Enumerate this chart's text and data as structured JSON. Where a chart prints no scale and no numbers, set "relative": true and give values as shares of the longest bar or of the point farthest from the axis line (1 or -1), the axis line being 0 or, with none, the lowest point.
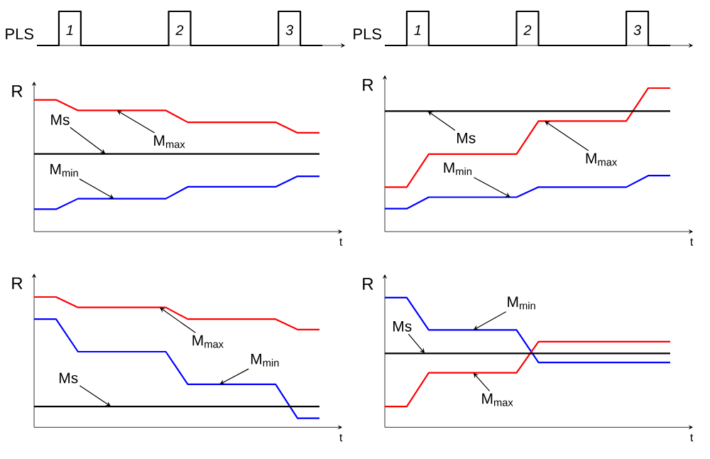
{
  "chart_data": [
    {
      "type": "step",
      "relative": true,
      "ylabel": "PLS",
      "categories": [
        null,
        null,
        null,
        null,
        null,
        null,
        null,
        null,
        null,
        null,
        null,
        null,
        null,
        null
      ],
      "series": [
        {
          "color": "#000000",
          "values": [
            0,
            1,
            0,
            0,
            0,
            0,
            1,
            0,
            0,
            0,
            0,
            1,
            0,
            0
          ]
        }
      ],
      "annotations": [
        "1",
        "2",
        "3"
      ]
    },
    {
      "type": "step",
      "relative": true,
      "ylabel": "PLS",
      "categories": [
        null,
        null,
        null,
        null,
        null,
        null,
        null,
        null,
        null,
        null,
        null,
        null,
        null,
        null
      ],
      "series": [
        {
          "color": "#000000",
          "values": [
            0,
            1,
            0,
            0,
            0,
            0,
            1,
            0,
            0,
            0,
            0,
            1,
            0,
            0
          ]
        }
      ],
      "annotations": [
        "1",
        "2",
        "3"
      ]
    },
    {
      "type": "line",
      "relative": true,
      "ylabel": "R",
      "xlabel": "t",
      "categories": [
        null,
        null,
        null,
        null,
        null,
        null,
        null,
        null,
        null,
        null,
        null,
        null,
        null,
        null
      ],
      "series": [
        {
          "color": "#ff0000",
          "values": [
            1,
            1,
            0.92,
            0.92,
            0.92,
            0.92,
            0.92,
            0.83,
            0.83,
            0.83,
            0.83,
            0.83,
            0.75,
            0.75
          ]
        },
        {
          "color": "#000000",
          "values": [
            0.59,
            0.59,
            0.59,
            0.59,
            0.59,
            0.59,
            0.59,
            0.59,
            0.59,
            0.59,
            0.59,
            0.59,
            0.59,
            0.59
          ]
        },
        {
          "color": "#0000ff",
          "values": [
            0.17,
            0.17,
            0.25,
            0.25,
            0.25,
            0.25,
            0.25,
            0.34,
            0.34,
            0.34,
            0.34,
            0.34,
            0.42,
            0.42
          ]
        }
      ],
      "annotations": [
        "Ms",
        "M$_{max}$",
        "M$_{min}$"
      ]
    },
    {
      "type": "line",
      "relative": true,
      "ylabel": "R",
      "xlabel": "t",
      "categories": [
        null,
        null,
        null,
        null,
        null,
        null,
        null,
        null,
        null,
        null,
        null,
        null,
        null,
        null
      ],
      "series": [
        {
          "color": "#ff0000",
          "values": [
            0.31,
            0.31,
            0.54,
            0.54,
            0.54,
            0.54,
            0.54,
            0.77,
            0.77,
            0.77,
            0.77,
            0.77,
            1,
            1
          ]
        },
        {
          "color": "#000000",
          "values": [
            0.84,
            0.84,
            0.84,
            0.84,
            0.84,
            0.84,
            0.84,
            0.84,
            0.84,
            0.84,
            0.84,
            0.84,
            0.84,
            0.84
          ]
        },
        {
          "color": "#0000ff",
          "values": [
            0.16,
            0.16,
            0.24,
            0.24,
            0.24,
            0.24,
            0.24,
            0.31,
            0.31,
            0.31,
            0.31,
            0.31,
            0.39,
            0.39
          ]
        }
      ],
      "annotations": [
        "Ms",
        "M$_{max}$",
        "M$_{min}$"
      ]
    },
    {
      "type": "line",
      "relative": true,
      "ylabel": "R",
      "xlabel": "t",
      "categories": [
        null,
        null,
        null,
        null,
        null,
        null,
        null,
        null,
        null,
        null,
        null,
        null,
        null,
        null
      ],
      "series": [
        {
          "color": "#ff0000",
          "values": [
            1,
            1,
            0.92,
            0.92,
            0.92,
            0.92,
            0.92,
            0.83,
            0.83,
            0.83,
            0.83,
            0.83,
            0.75,
            0.75
          ]
        },
        {
          "color": "#0000ff",
          "values": [
            0.83,
            0.83,
            0.58,
            0.58,
            0.58,
            0.58,
            0.58,
            0.33,
            0.33,
            0.33,
            0.33,
            0.33,
            0.07,
            0.07
          ]
        },
        {
          "color": "#000000",
          "values": [
            0.16,
            0.16,
            0.16,
            0.16,
            0.16,
            0.16,
            0.16,
            0.16,
            0.16,
            0.16,
            0.16,
            0.16,
            0.16,
            0.16
          ]
        }
      ],
      "annotations": [
        "M$_{max}$",
        "M$_{min}$",
        "Ms"
      ]
    },
    {
      "type": "line",
      "relative": true,
      "ylabel": "R",
      "xlabel": "t",
      "categories": [
        null,
        null,
        null,
        null,
        null,
        null,
        null,
        null,
        null,
        null,
        null,
        null,
        null,
        null
      ],
      "series": [
        {
          "color": "#0000ff",
          "values": [
            1,
            1,
            0.75,
            0.75,
            0.75,
            0.75,
            0.75,
            0.5,
            0.5,
            0.5,
            0.5,
            0.5,
            0.5,
            0.5
          ]
        },
        {
          "color": "#ff0000",
          "values": [
            0.16,
            0.16,
            0.42,
            0.42,
            0.42,
            0.42,
            0.42,
            0.66,
            0.66,
            0.66,
            0.66,
            0.66,
            0.66,
            0.66
          ]
        },
        {
          "color": "#000000",
          "values": [
            0.57,
            0.57,
            0.57,
            0.57,
            0.57,
            0.57,
            0.57,
            0.57,
            0.57,
            0.57,
            0.57,
            0.57,
            0.57,
            0.57
          ]
        }
      ],
      "annotations": [
        "M$_{min}$",
        "Ms",
        "M$_{max}$"
      ]
    }
  ]
}
